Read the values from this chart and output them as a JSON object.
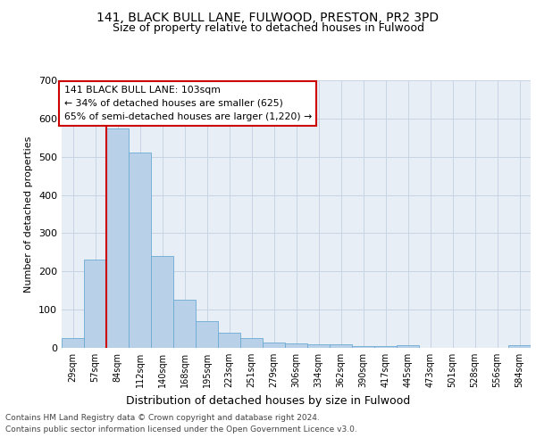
{
  "title1": "141, BLACK BULL LANE, FULWOOD, PRESTON, PR2 3PD",
  "title2": "Size of property relative to detached houses in Fulwood",
  "xlabel": "Distribution of detached houses by size in Fulwood",
  "ylabel": "Number of detached properties",
  "footer1": "Contains HM Land Registry data © Crown copyright and database right 2024.",
  "footer2": "Contains public sector information licensed under the Open Government Licence v3.0.",
  "annotation_line1": "141 BLACK BULL LANE: 103sqm",
  "annotation_line2": "← 34% of detached houses are smaller (625)",
  "annotation_line3": "65% of semi-detached houses are larger (1,220) →",
  "bar_color": "#b8d0e8",
  "bar_edge_color": "#6aaad4",
  "highlight_line_color": "#cc0000",
  "annotation_box_color": "#cc0000",
  "grid_color": "#c8d4e4",
  "bg_color": "#e8eef6",
  "categories": [
    "29sqm",
    "57sqm",
    "84sqm",
    "112sqm",
    "140sqm",
    "168sqm",
    "195sqm",
    "223sqm",
    "251sqm",
    "279sqm",
    "306sqm",
    "334sqm",
    "362sqm",
    "390sqm",
    "417sqm",
    "445sqm",
    "473sqm",
    "501sqm",
    "528sqm",
    "556sqm",
    "584sqm"
  ],
  "values": [
    25,
    230,
    575,
    510,
    240,
    125,
    70,
    40,
    25,
    15,
    12,
    10,
    10,
    5,
    5,
    8,
    0,
    0,
    0,
    0,
    7
  ],
  "highlight_index": 2,
  "ylim": [
    0,
    700
  ],
  "yticks": [
    0,
    100,
    200,
    300,
    400,
    500,
    600,
    700
  ]
}
